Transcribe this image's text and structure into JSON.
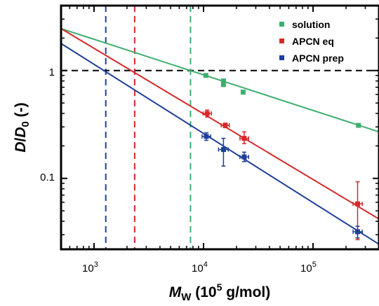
{
  "chart_data": {
    "type": "scatter",
    "xscale": "log",
    "yscale": "log",
    "xlim": [
      500,
      400000
    ],
    "ylim": [
      0.022,
      4.0
    ],
    "grid": false,
    "legend_placement": "top-right",
    "xlabel": {
      "main": "M",
      "sub": "W",
      "open": " (10",
      "sup": "5",
      "close": " g/mol)"
    },
    "ylabel": {
      "a": "D",
      "slash": "/",
      "b": "D",
      "sub": "0",
      "unit": " (-)"
    },
    "x_ticks": [
      {
        "value": 1000,
        "base": "10",
        "exp": "3"
      },
      {
        "value": 10000,
        "base": "10",
        "exp": "4"
      },
      {
        "value": 100000,
        "base": "10",
        "exp": "5"
      }
    ],
    "y_ticks": [
      {
        "value": 0.1,
        "label": "0.1"
      },
      {
        "value": 1,
        "label": "1"
      }
    ],
    "reference_line": {
      "y": 1,
      "color": "#000000"
    },
    "series": [
      {
        "name": "solution",
        "color": "#3dae6d",
        "points": [
          {
            "x": 10500,
            "y": 0.9,
            "yerr_lo": 0.88,
            "yerr_hi": 0.92,
            "xerr_lo": 10300,
            "xerr_hi": 10700
          },
          {
            "x": 15200,
            "y": 0.8,
            "yerr_lo": 0.75,
            "yerr_hi": 0.83,
            "xerr_lo": 15000,
            "xerr_hi": 15400
          },
          {
            "x": 15200,
            "y": 0.74,
            "yerr_lo": 0.72,
            "yerr_hi": 0.76,
            "xerr_lo": 15000,
            "xerr_hi": 15400
          },
          {
            "x": 23000,
            "y": 0.63,
            "yerr_lo": 0.61,
            "yerr_hi": 0.65,
            "xerr_lo": 22700,
            "xerr_hi": 23300
          },
          {
            "x": 260000,
            "y": 0.31,
            "yerr_lo": 0.3,
            "yerr_hi": 0.32,
            "xerr_lo": 255000,
            "xerr_hi": 265000
          }
        ],
        "fit": {
          "x": [
            500,
            400000
          ],
          "y": [
            2.45,
            0.27
          ]
        },
        "vline_x": 7600
      },
      {
        "name": "APCN eq",
        "color": "#d42a2a",
        "points": [
          {
            "x": 10800,
            "y": 0.4,
            "yerr_lo": 0.37,
            "yerr_hi": 0.43,
            "xerr_lo": 9900,
            "xerr_hi": 11800
          },
          {
            "x": 15800,
            "y": 0.31,
            "yerr_lo": 0.295,
            "yerr_hi": 0.325,
            "xerr_lo": 14500,
            "xerr_hi": 17200
          },
          {
            "x": 23500,
            "y": 0.235,
            "yerr_lo": 0.21,
            "yerr_hi": 0.27,
            "xerr_lo": 21500,
            "xerr_hi": 25800
          },
          {
            "x": 255000,
            "y": 0.058,
            "yerr_lo": 0.027,
            "yerr_hi": 0.093,
            "xerr_lo": 232000,
            "xerr_hi": 282000
          }
        ],
        "fit": {
          "x": [
            500,
            400000
          ],
          "y": [
            2.45,
            0.042
          ]
        },
        "vline_x": 2350
      },
      {
        "name": "APCN prep",
        "color": "#1f3f99",
        "points": [
          {
            "x": 10600,
            "y": 0.245,
            "yerr_lo": 0.225,
            "yerr_hi": 0.265,
            "xerr_lo": 9700,
            "xerr_hi": 11600
          },
          {
            "x": 15200,
            "y": 0.185,
            "yerr_lo": 0.13,
            "yerr_hi": 0.235,
            "xerr_lo": 13700,
            "xerr_hi": 16800
          },
          {
            "x": 23500,
            "y": 0.158,
            "yerr_lo": 0.143,
            "yerr_hi": 0.175,
            "xerr_lo": 21500,
            "xerr_hi": 25800
          },
          {
            "x": 255000,
            "y": 0.032,
            "yerr_lo": 0.028,
            "yerr_hi": 0.036,
            "xerr_lo": 232000,
            "xerr_hi": 282000
          }
        ],
        "fit": {
          "x": [
            500,
            400000
          ],
          "y": [
            1.78,
            0.0245
          ]
        },
        "vline_x": 1280
      }
    ]
  }
}
